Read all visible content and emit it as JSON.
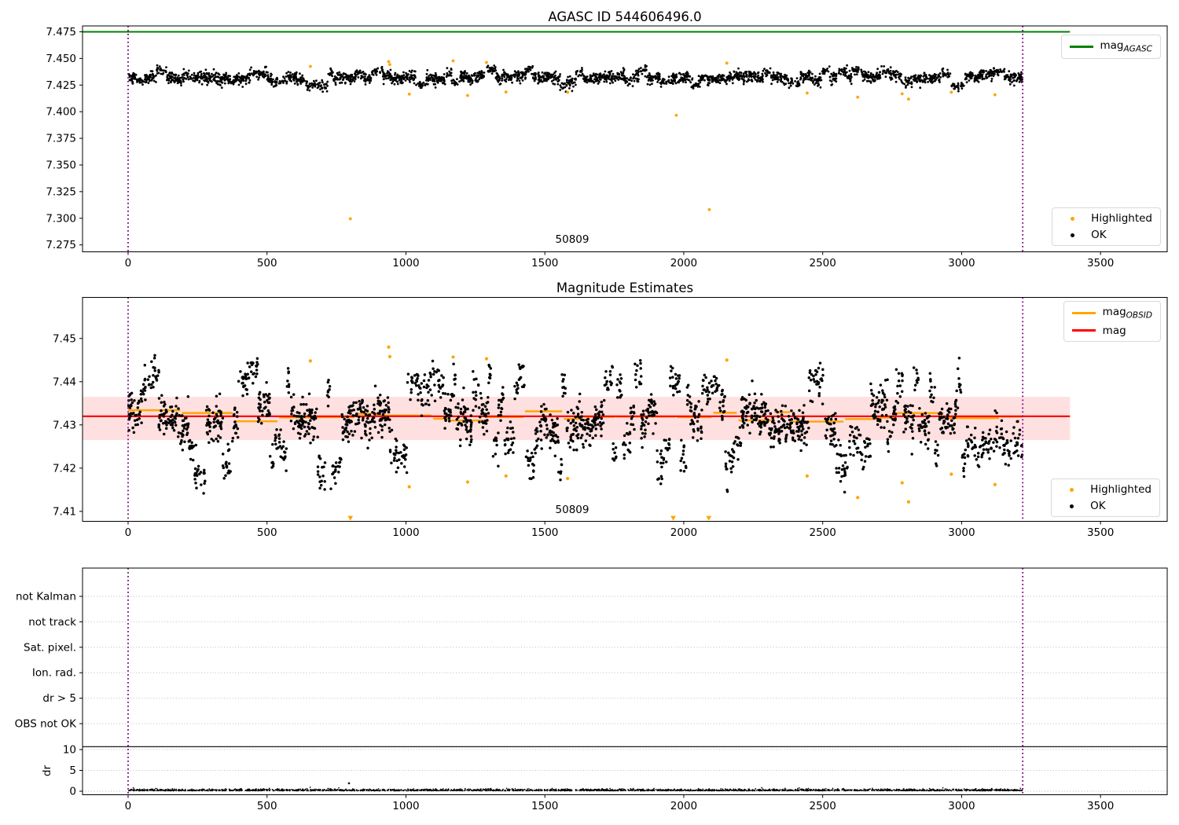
{
  "colors": {
    "ok_black": "#000000",
    "highlight_orange": "#ffa500",
    "agasc_green": "#008000",
    "mag_red": "#ff0000",
    "obsid_orange": "#ffa500",
    "band_pink": "rgba(255,0,0,0.12)",
    "vline_purple": "#800080",
    "grid_gray": "#bbbbbb",
    "spine_black": "#000000"
  },
  "chart_data": [
    {
      "id": "agasc",
      "type": "scatter",
      "title": "AGASC ID 544606496.0",
      "xlim": [
        -164,
        3740
      ],
      "ylim": [
        7.2685,
        7.4805
      ],
      "xtick_values": [
        0,
        500,
        1000,
        1500,
        2000,
        2500,
        3000,
        3500
      ],
      "xtick_labels": [
        "0",
        "500",
        "1000",
        "1500",
        "2000",
        "2500",
        "3000",
        "3500"
      ],
      "ytick_values": [
        7.275,
        7.3,
        7.325,
        7.35,
        7.375,
        7.4,
        7.425,
        7.45,
        7.475
      ],
      "ytick_labels": [
        "7.275",
        "7.300",
        "7.325",
        "7.350",
        "7.375",
        "7.400",
        "7.425",
        "7.450",
        "7.475"
      ],
      "ref_lines": [
        {
          "name": "mag_agasc",
          "y": 7.475,
          "x_start": -164,
          "x_end": 3390,
          "color_key": "agasc_green",
          "width": 2
        }
      ],
      "vlines": {
        "x": [
          0,
          3220
        ],
        "color_key": "vline_purple"
      },
      "annotation": {
        "text": "50809",
        "x": 1600
      },
      "legends": {
        "upper": {
          "items": [
            {
              "type": "line",
              "color_key": "agasc_green",
              "label": "mag",
              "sub": "AGASC"
            }
          ]
        },
        "lower": {
          "items": [
            {
              "type": "dot",
              "color_key": "highlight_orange",
              "label": "Highlighted"
            },
            {
              "type": "dot",
              "color_key": "ok_black",
              "label": "OK"
            }
          ]
        }
      },
      "ok_series": {
        "seed": 11,
        "x_range": [
          2,
          3218
        ],
        "y_mean": 7.432,
        "wave_amp": 0.0012,
        "p_core": 0.6,
        "core_bias": 0.0012,
        "core_sigma": 0.0026,
        "core_density": 1.0,
        "exc_min": 0.003,
        "exc_spread_up": 0.004,
        "exc_spread_dn": 0.005,
        "exc_sigma": 0.0023,
        "exc_density": 0.6,
        "clip": [
          7.415,
          7.447
        ],
        "marker_r": 1.4
      },
      "highlight_r": 1.9,
      "highlighted_points": [
        [
          656,
          7.4425
        ],
        [
          800,
          7.2995
        ],
        [
          938,
          7.447
        ],
        [
          942,
          7.4443
        ],
        [
          1012,
          7.4165
        ],
        [
          1170,
          7.4478
        ],
        [
          1222,
          7.4152
        ],
        [
          1290,
          7.4462
        ],
        [
          1360,
          7.4185
        ],
        [
          1582,
          7.4183
        ],
        [
          1973,
          7.3966
        ],
        [
          2092,
          7.3081
        ],
        [
          2155,
          7.4456
        ],
        [
          2444,
          7.4175
        ],
        [
          2626,
          7.4137
        ],
        [
          2786,
          7.4168
        ],
        [
          2809,
          7.4118
        ],
        [
          2963,
          7.4183
        ],
        [
          3120,
          7.4159
        ]
      ]
    },
    {
      "id": "magest",
      "type": "scatter",
      "title": "Magnitude Estimates",
      "xlim": [
        -164,
        3740
      ],
      "ylim": [
        7.4077,
        7.4595
      ],
      "xtick_values": [
        0,
        500,
        1000,
        1500,
        2000,
        2500,
        3000,
        3500
      ],
      "xtick_labels": [
        "0",
        "500",
        "1000",
        "1500",
        "2000",
        "2500",
        "3000",
        "3500"
      ],
      "ytick_values": [
        7.41,
        7.42,
        7.43,
        7.44,
        7.45
      ],
      "ytick_labels": [
        "7.41",
        "7.42",
        "7.43",
        "7.44",
        "7.45"
      ],
      "band": {
        "y_low": 7.4265,
        "y_high": 7.4365,
        "x_start": -164,
        "x_end": 3390
      },
      "obsid_segments": {
        "seed": 44,
        "x_range": [
          0,
          3220
        ],
        "y_mean": 7.4319,
        "y_sigma": 0.0009
      },
      "ref_lines": [
        {
          "name": "mag",
          "y": 7.432,
          "x_start": -164,
          "x_end": 3390,
          "color_key": "mag_red",
          "width": 2.2
        }
      ],
      "vlines": {
        "x": [
          0,
          3220
        ],
        "color_key": "vline_purple"
      },
      "annotation": {
        "text": "50809",
        "x": 1600
      },
      "legends": {
        "upper": {
          "items": [
            {
              "type": "line-thick",
              "color_key": "obsid_orange",
              "label": "mag",
              "sub": "OBSID"
            },
            {
              "type": "line",
              "color_key": "mag_red",
              "label": "mag"
            }
          ]
        },
        "lower": {
          "items": [
            {
              "type": "dot",
              "color_key": "highlight_orange",
              "label": "Highlighted"
            },
            {
              "type": "dot",
              "color_key": "ok_black",
              "label": "OK"
            }
          ]
        }
      },
      "ok_series": {
        "seed": 22,
        "x_range": [
          2,
          3218
        ],
        "y_mean": 7.4316,
        "wave_amp": 0.0014,
        "p_core": 0.5,
        "core_bias": 0.0013,
        "core_sigma": 0.0023,
        "core_density": 0.85,
        "exc_min": 0.005,
        "exc_spread_up": 0.0055,
        "exc_spread_dn": 0.007,
        "exc_sigma": 0.0021,
        "exc_density": 0.55,
        "clip": [
          7.4098,
          7.4492
        ],
        "marker_r": 1.75
      },
      "highlight_r": 2.1,
      "highlighted_points": [
        [
          656,
          7.4448
        ],
        [
          938,
          7.448
        ],
        [
          942,
          7.4458
        ],
        [
          1012,
          7.4157
        ],
        [
          1170,
          7.4457
        ],
        [
          1222,
          7.4168
        ],
        [
          1290,
          7.4453
        ],
        [
          1360,
          7.4182
        ],
        [
          1582,
          7.4176
        ],
        [
          2155,
          7.445
        ],
        [
          2444,
          7.4182
        ],
        [
          2626,
          7.4132
        ],
        [
          2786,
          7.4166
        ],
        [
          2809,
          7.4122
        ],
        [
          2963,
          7.4186
        ],
        [
          3120,
          7.4162
        ]
      ],
      "clipped_low_x": [
        800,
        1962,
        2090
      ]
    },
    {
      "id": "flags",
      "type": "scatter",
      "categories": [
        "OBS not OK",
        "dr > 5",
        "Ion. rad.",
        "Sat. pixel.",
        "not track",
        "not Kalman"
      ],
      "dr_tick_values": [
        0,
        5,
        10
      ],
      "dr_tick_labels": [
        "0",
        "5",
        "10"
      ],
      "ylabel": "dr",
      "xtick_values": [
        0,
        500,
        1000,
        1500,
        2000,
        2500,
        3000,
        3500
      ],
      "xtick_labels": [
        "0",
        "500",
        "1000",
        "1500",
        "2000",
        "2500",
        "3000",
        "3500"
      ],
      "hline_value": 10.7,
      "vlines": {
        "x": [
          0,
          3220
        ],
        "color_key": "vline_purple"
      },
      "dr_series": {
        "seed": 33,
        "n": 2600,
        "x_range": [
          2,
          3218
        ],
        "y_base": 0.1,
        "y_spread": 0.2,
        "clip_max": 1.3,
        "marker_r": 0.85
      },
      "outlier_points": [
        [
          795,
          1.9
        ]
      ]
    }
  ]
}
